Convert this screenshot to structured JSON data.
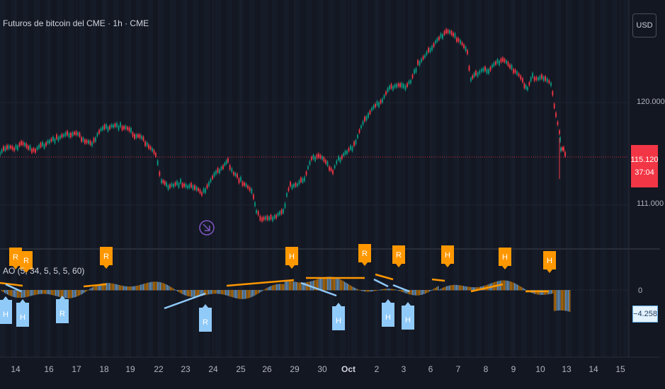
{
  "header": {
    "title": "Futuros de bitcoin del CME · 1h · CME",
    "currency": "USD"
  },
  "price_axis": {
    "ticks": [
      {
        "label": "120.000",
        "value": 120000
      },
      {
        "label": "111.000",
        "value": 111000
      }
    ],
    "current_price": "115.120",
    "countdown": "37:04"
  },
  "indicator": {
    "legend": "AO (5, 34, 5, 5, 5, 60)",
    "zero_label": "0",
    "value_label": "−4.258",
    "marker_labels": {
      "regular_bear": "R",
      "hidden_bear": "H",
      "hidden_bull": "H",
      "regular_bull": "R"
    }
  },
  "time_axis": {
    "labels": [
      "14",
      "16",
      "17",
      "18",
      "19",
      "22",
      "23",
      "24",
      "25",
      "26",
      "29",
      "30",
      "Oct",
      "2",
      "3",
      "6",
      "7",
      "8",
      "9",
      "10",
      "13",
      "14",
      "15"
    ]
  },
  "colors": {
    "background": "#131722",
    "bull_candle": "#089981",
    "bear_candle": "#f23645",
    "bear_divergence": "#ff9800",
    "bull_divergence": "#90caf9",
    "price_line": "#f23645",
    "pane_separator": "#2a2e39"
  },
  "icons": {
    "event_marker": "arrow-down-right-icon"
  }
}
